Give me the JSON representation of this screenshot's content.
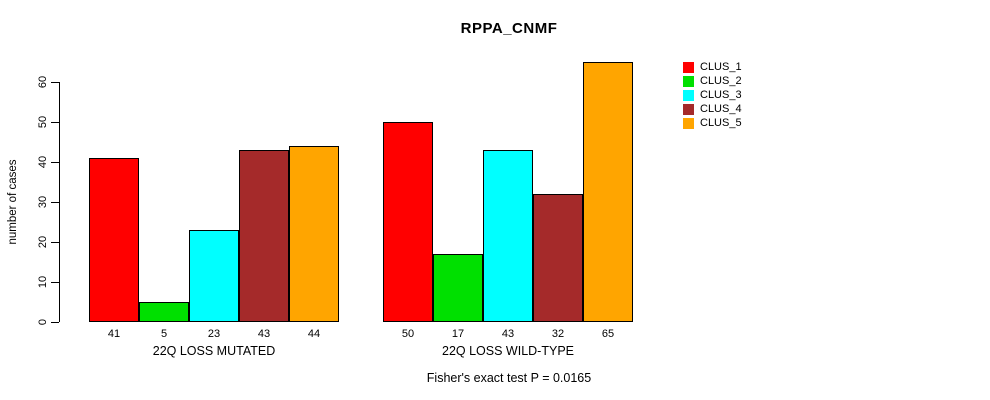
{
  "title": "RPPA_CNMF",
  "chart_data": {
    "type": "bar",
    "title": "RPPA_CNMF",
    "ylabel": "number of cases",
    "xlabel": "",
    "ylim": [
      0,
      60
    ],
    "yticks": [
      0,
      10,
      20,
      30,
      40,
      50,
      60
    ],
    "grid": false,
    "legend_position": "right",
    "categories": [
      "22Q LOSS MUTATED",
      "22Q LOSS WILD-TYPE"
    ],
    "series": [
      {
        "name": "CLUS_1",
        "color": "#ff0000",
        "values": [
          41,
          50
        ]
      },
      {
        "name": "CLUS_2",
        "color": "#00e000",
        "values": [
          5,
          17
        ]
      },
      {
        "name": "CLUS_3",
        "color": "#00ffff",
        "values": [
          23,
          43
        ]
      },
      {
        "name": "CLUS_4",
        "color": "#a52a2a",
        "values": [
          43,
          32
        ]
      },
      {
        "name": "CLUS_5",
        "color": "#ffa500",
        "values": [
          44,
          65
        ]
      }
    ],
    "bar_value_labels": [
      [
        41,
        5,
        23,
        43,
        44
      ],
      [
        50,
        17,
        43,
        32,
        65
      ]
    ],
    "note": "Fisher's exact test P = 0.0165"
  }
}
